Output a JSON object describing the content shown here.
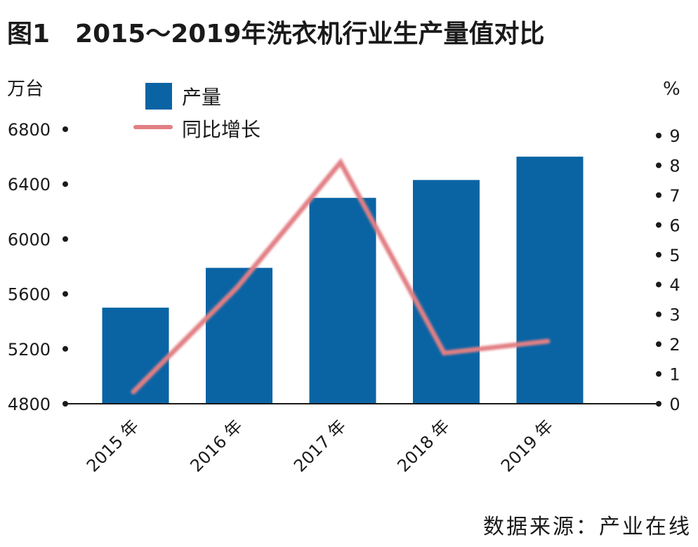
{
  "title": "图1　2015～2019年洗衣机行业生产量值对比",
  "source": "数据来源：产业在线",
  "colors": {
    "bar": "#0a64a4",
    "line": "#e27f84",
    "text": "#1a1a1a"
  },
  "chart_data": {
    "type": "bar",
    "categories": [
      "2015 年",
      "2016 年",
      "2017 年",
      "2018 年",
      "2019 年"
    ],
    "series": [
      {
        "name": "产量",
        "type": "bar",
        "axis": "left",
        "values": [
          5500,
          5790,
          6300,
          6430,
          6600
        ]
      },
      {
        "name": "同比增长",
        "type": "line",
        "axis": "right",
        "values": [
          0.4,
          3.9,
          8.1,
          1.7,
          2.1
        ]
      }
    ],
    "left_axis": {
      "unit": "万台",
      "min": 4800,
      "max": 6800,
      "ticks": [
        4800,
        5200,
        5600,
        6000,
        6400,
        6800
      ]
    },
    "right_axis": {
      "unit": "%",
      "min": 0,
      "max": 9,
      "ticks": [
        0,
        1,
        2,
        3,
        4,
        5,
        6,
        7,
        8,
        9
      ]
    },
    "grid": false,
    "legend": "top-left"
  }
}
